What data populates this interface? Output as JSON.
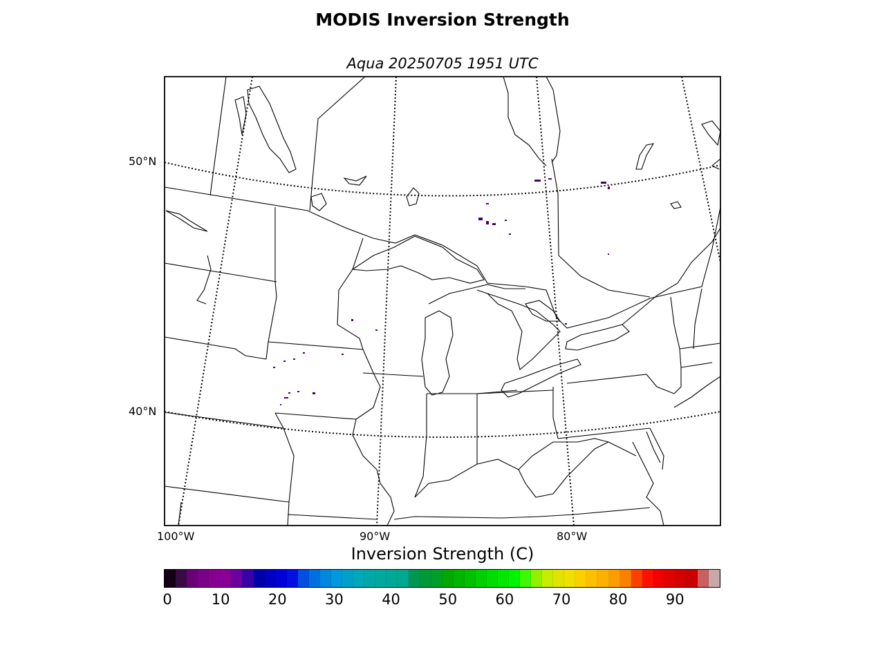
{
  "title": "MODIS Inversion Strength",
  "subtitle": "Aqua 20250705 1951 UTC",
  "map": {
    "lat_labels": [
      "50°N",
      "40°N"
    ],
    "lon_labels": [
      "100°W",
      "90°W",
      "80°W"
    ],
    "boundary_color": "#000000",
    "background_color": "#ffffff"
  },
  "colorbar": {
    "label": "Inversion Strength (C)",
    "ticks": [
      "0",
      "10",
      "20",
      "30",
      "40",
      "50",
      "60",
      "70",
      "80",
      "90"
    ],
    "range": [
      0,
      98
    ],
    "colors": [
      "#140014",
      "#3a0a45",
      "#6a0078",
      "#7a0088",
      "#880090",
      "#880096",
      "#6a00a0",
      "#3a00a8",
      "#0000a8",
      "#0000c0",
      "#0000d8",
      "#0010e0",
      "#0050e0",
      "#0070e0",
      "#0088dd",
      "#0098d8",
      "#00a0c8",
      "#00a8b8",
      "#00a8a8",
      "#00a8a0",
      "#00a898",
      "#00a890",
      "#009850",
      "#009838",
      "#00a028",
      "#00a800",
      "#00b400",
      "#00c000",
      "#00d000",
      "#00dc00",
      "#00e800",
      "#00f400",
      "#40f800",
      "#90f000",
      "#c8ec00",
      "#e0e400",
      "#f0e000",
      "#fcd000",
      "#fcc000",
      "#fcb000",
      "#fc9c00",
      "#fc8000",
      "#fc4000",
      "#fc1000",
      "#f00000",
      "#e00000",
      "#d40000",
      "#c80000",
      "#c86060",
      "#c8a8a8"
    ]
  },
  "data_pixels_color": "#4a0066"
}
